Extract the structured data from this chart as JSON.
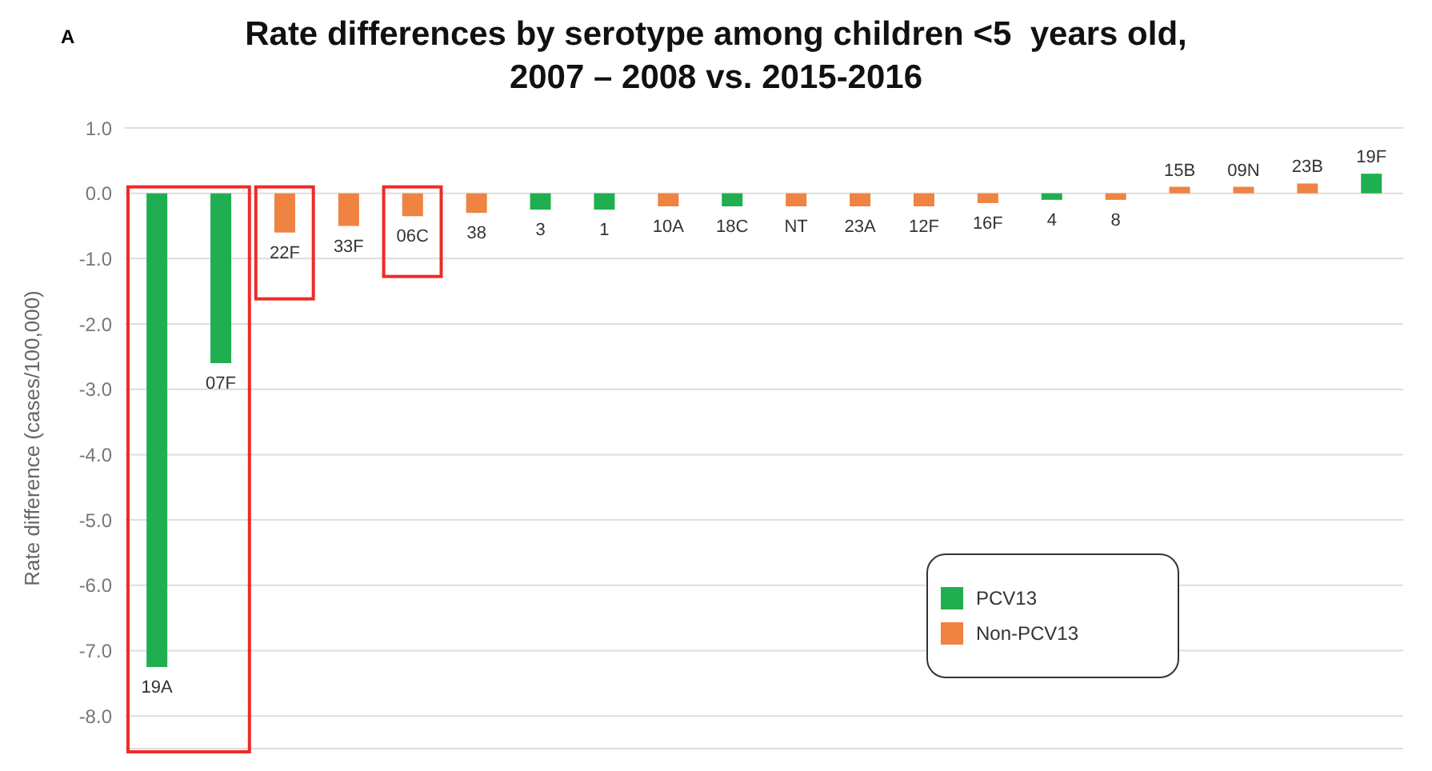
{
  "chart_data": {
    "type": "bar",
    "title": "Rate differences by serotype among children <5  years old,\n2007 – 2008 vs. 2015-2016",
    "ylabel": "Rate difference (cases/100,000)",
    "annotations": [
      "A"
    ],
    "categories": [
      "19A",
      "07F",
      "22F",
      "33F",
      "06C",
      "38",
      "3",
      "1",
      "10A",
      "18C",
      "NT",
      "23A",
      "12F",
      "16F",
      "4",
      "8",
      "15B",
      "09N",
      "23B",
      "19F"
    ],
    "stacked": true,
    "series": [
      {
        "name": "PCV13",
        "color": "#1faf50",
        "values": [
          -7.25,
          -2.6,
          null,
          null,
          null,
          null,
          -0.25,
          -0.25,
          null,
          -0.2,
          null,
          null,
          null,
          null,
          -0.1,
          null,
          null,
          null,
          null,
          0.3
        ]
      },
      {
        "name": "Non-PCV13",
        "color": "#ef8342",
        "values": [
          null,
          null,
          -0.6,
          -0.5,
          -0.35,
          -0.3,
          null,
          null,
          -0.2,
          null,
          -0.2,
          -0.2,
          -0.2,
          -0.15,
          null,
          -0.1,
          0.1,
          0.1,
          0.15,
          null
        ]
      }
    ],
    "ylim": [
      -8.5,
      1.0
    ],
    "yticks": [
      {
        "value": 1,
        "label": "1.0"
      },
      {
        "value": 0,
        "label": "0.0"
      },
      {
        "value": -1,
        "label": "-1.0"
      },
      {
        "value": -2,
        "label": "-2.0"
      },
      {
        "value": -3,
        "label": "-3.0"
      },
      {
        "value": -4,
        "label": "-4.0"
      },
      {
        "value": -5,
        "label": "-5.0"
      },
      {
        "value": -6,
        "label": "-6.0"
      },
      {
        "value": -7,
        "label": "-7.0"
      },
      {
        "value": -8,
        "label": "-8.0"
      }
    ],
    "grid": "y",
    "legend": "bottom right"
  }
}
